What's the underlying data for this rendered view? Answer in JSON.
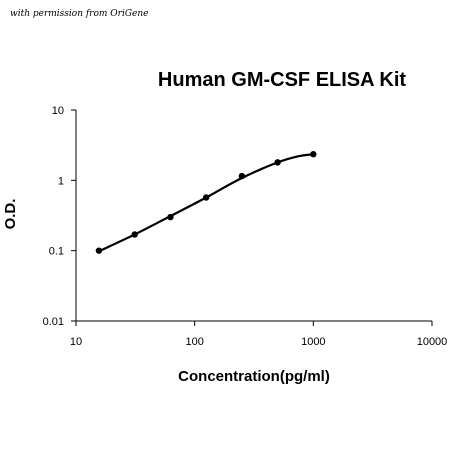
{
  "credit": "with permission from OriGene",
  "chart_data": {
    "type": "scatter",
    "title": "Human GM-CSF ELISA Kit",
    "xlabel": "Concentration(pg/ml)",
    "ylabel": "O.D.",
    "xscale": "log",
    "yscale": "log",
    "xlim": [
      10,
      10000
    ],
    "ylim": [
      0.01,
      10
    ],
    "x_ticks": [
      "10",
      "100",
      "1000",
      "10000"
    ],
    "y_ticks": [
      "0.01",
      "0.1",
      "1",
      "10"
    ],
    "grid": false,
    "legend": "none",
    "series": [
      {
        "x": [
          15.6,
          31.25,
          62.5,
          125,
          250,
          500,
          1000
        ],
        "y": [
          0.1,
          0.17,
          0.3,
          0.57,
          1.15,
          1.8,
          2.35
        ]
      }
    ],
    "fit_curve": {
      "x": [
        15.6,
        31.25,
        62.5,
        125,
        250,
        500,
        750,
        1000
      ],
      "y": [
        0.098,
        0.17,
        0.31,
        0.57,
        1.08,
        1.8,
        2.2,
        2.35
      ]
    }
  }
}
